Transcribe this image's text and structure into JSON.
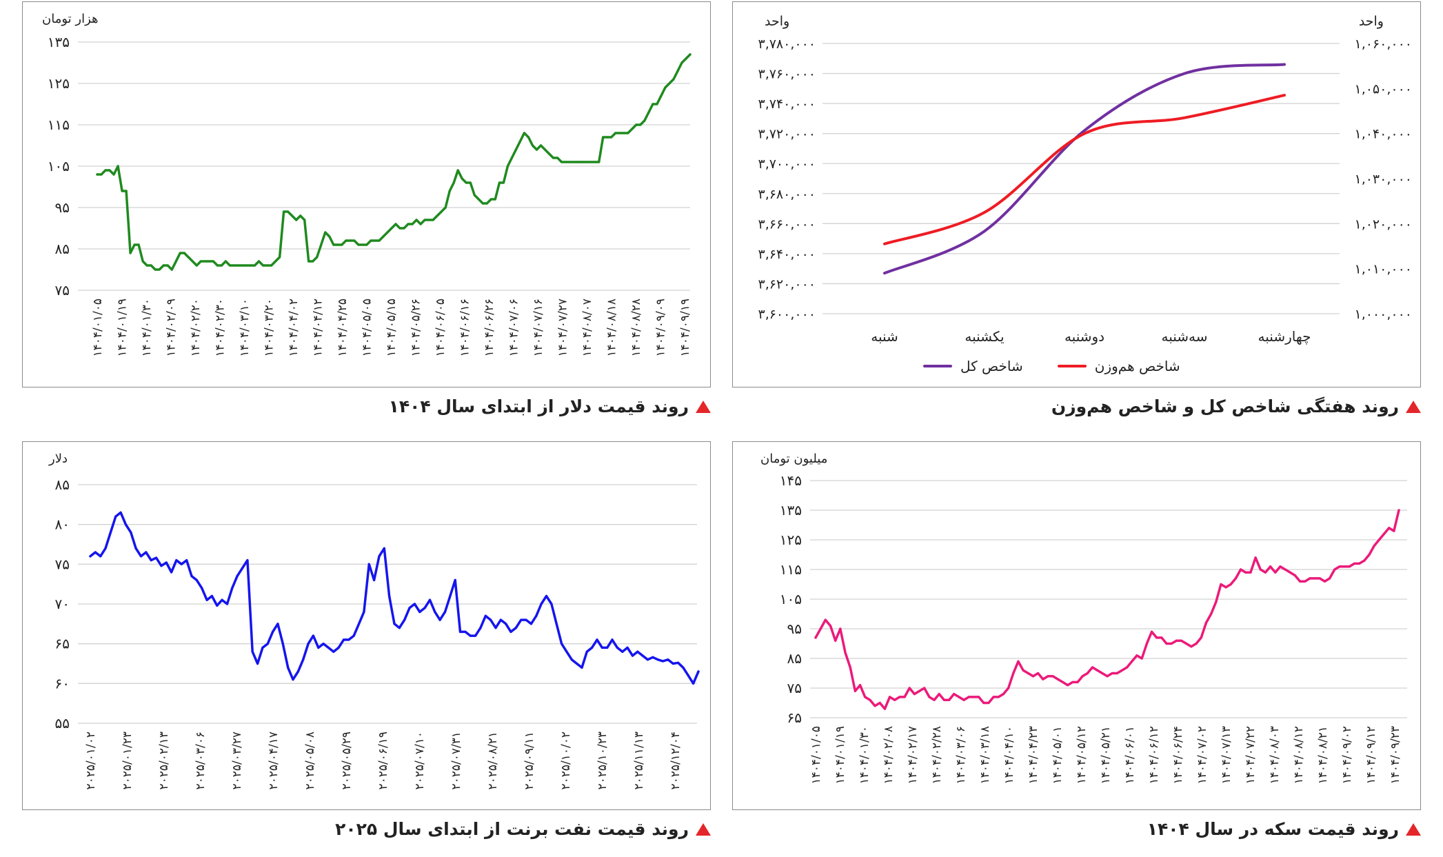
{
  "colors": {
    "dollar": "#1f8a1f",
    "index": "#7030a0",
    "ew": "#ee1c24",
    "coin": "#ec1a7a",
    "oil": "#1515ee",
    "caption_marker": "#e4262a"
  },
  "captions": {
    "dollar": "روند قیمت دلار از ابتدای سال ۱۴۰۴",
    "index": "روند هفتگی شاخص کل و شاخص هم‌وزن",
    "oil": "روند قیمت نفت برنت از ابتدای سال ۲۰۲۵",
    "coin": "روند قیمت سکه در سال ۱۴۰۴"
  },
  "chart_data": [
    {
      "id": "dollar",
      "type": "line",
      "unit_label": "هزار تومان",
      "ylim": [
        75,
        135
      ],
      "yticks": [
        75,
        85,
        95,
        105,
        115,
        125,
        135
      ],
      "ytick_labels": [
        "۷۵",
        "۸۵",
        "۹۵",
        "۱۰۵",
        "۱۱۵",
        "۱۲۵",
        "۱۳۵"
      ],
      "xtick_labels": [
        "۱۴۰۴/۰۱/۰۵",
        "۱۴۰۴/۰۱/۱۹",
        "۱۴۰۴/۰۱/۳۰",
        "۱۴۰۴/۰۲/۰۹",
        "۱۴۰۴/۰۲/۲۰",
        "۱۴۰۴/۰۲/۳۰",
        "۱۴۰۴/۰۳/۱۰",
        "۱۴۰۴/۰۳/۲۰",
        "۱۴۰۴/۰۴/۰۲",
        "۱۴۰۴/۰۴/۱۲",
        "۱۴۰۴/۰۴/۲۵",
        "۱۴۰۴/۰۵/۰۵",
        "۱۴۰۴/۰۵/۱۵",
        "۱۴۰۴/۰۵/۲۶",
        "۱۴۰۴/۰۶/۰۵",
        "۱۴۰۴/۰۶/۱۶",
        "۱۴۰۴/۰۶/۲۶",
        "۱۴۰۴/۰۷/۰۶",
        "۱۴۰۴/۰۷/۱۶",
        "۱۴۰۴/۰۷/۲۷",
        "۱۴۰۴/۰۸/۰۷",
        "۱۴۰۴/۰۸/۱۸",
        "۱۴۰۴/۰۸/۲۸",
        "۱۴۰۴/۰۹/۰۹",
        "۱۴۰۴/۰۹/۱۹"
      ],
      "values": [
        103,
        103,
        104,
        104,
        103,
        105,
        99,
        99,
        84,
        86,
        86,
        82,
        81,
        81,
        80,
        80,
        81,
        81,
        80,
        82,
        84,
        84,
        83,
        82,
        81,
        82,
        82,
        82,
        82,
        81,
        81,
        82,
        81,
        81,
        81,
        81,
        81,
        81,
        81,
        82,
        81,
        81,
        81,
        82,
        83,
        94,
        94,
        93,
        92,
        93,
        92,
        82,
        82,
        83,
        86,
        89,
        88,
        86,
        86,
        86,
        87,
        87,
        87,
        86,
        86,
        86,
        87,
        87,
        87,
        88,
        89,
        90,
        91,
        90,
        90,
        91,
        91,
        92,
        91,
        92,
        92,
        92,
        93,
        94,
        95,
        99,
        101,
        104,
        102,
        101,
        101,
        98,
        97,
        96,
        96,
        97,
        97,
        101,
        101,
        105,
        107,
        109,
        111,
        113,
        112,
        110,
        109,
        110,
        109,
        108,
        107,
        107,
        106,
        106,
        106,
        106,
        106,
        106,
        106,
        106,
        106,
        106,
        112,
        112,
        112,
        113,
        113,
        113,
        113,
        114,
        115,
        115,
        116,
        118,
        120,
        120,
        122,
        124,
        125,
        126,
        128,
        130,
        131,
        132
      ]
    },
    {
      "id": "index",
      "type": "line",
      "unit_label_left": "واحد",
      "unit_label_right": "واحد",
      "categories": [
        "شنبه",
        "یکشنبه",
        "دوشنبه",
        "سه‌شنبه",
        "چهارشنبه"
      ],
      "left_ylim": [
        3600000,
        3780000
      ],
      "left_ytick_labels": [
        "۳,۶۰۰,۰۰۰",
        "۳,۶۲۰,۰۰۰",
        "۳,۶۴۰,۰۰۰",
        "۳,۶۶۰,۰۰۰",
        "۳,۶۸۰,۰۰۰",
        "۳,۷۰۰,۰۰۰",
        "۳,۷۲۰,۰۰۰",
        "۳,۷۴۰,۰۰۰",
        "۳,۷۶۰,۰۰۰",
        "۳,۷۸۰,۰۰۰"
      ],
      "right_ylim": [
        1000000,
        1060000
      ],
      "right_ytick_labels": [
        "۱,۰۰۰,۰۰۰",
        "۱,۰۱۰,۰۰۰",
        "۱,۰۲۰,۰۰۰",
        "۱,۰۳۰,۰۰۰",
        "۱,۰۴۰,۰۰۰",
        "۱,۰۵۰,۰۰۰",
        "۱,۰۶۰,۰۰۰"
      ],
      "series": [
        {
          "name": "شاخص کل",
          "axis": "left",
          "values": [
            3627000,
            3655000,
            3722000,
            3760000,
            3766000
          ]
        },
        {
          "name": "شاخص هم‌وزن",
          "axis": "right",
          "values": [
            1015500,
            1022500,
            1040000,
            1043500,
            1048500
          ]
        }
      ],
      "legend": [
        "شاخص هم‌وزن",
        "شاخص کل"
      ]
    },
    {
      "id": "oil",
      "type": "line",
      "unit_label": "دلار",
      "ylim": [
        55,
        85
      ],
      "yticks": [
        55,
        60,
        65,
        70,
        75,
        80,
        85
      ],
      "ytick_labels": [
        "۵۵",
        "۶۰",
        "۶۵",
        "۷۰",
        "۷۵",
        "۸۰",
        "۸۵"
      ],
      "xtick_labels": [
        "۲۰۲۵/۰۱/۰۲",
        "۲۰۲۵/۰۱/۲۳",
        "۲۰۲۵/۰۲/۱۳",
        "۲۰۲۵/۰۳/۰۶",
        "۲۰۲۵/۰۳/۲۷",
        "۲۰۲۵/۰۴/۱۷",
        "۲۰۲۵/۰۵/۰۸",
        "۲۰۲۵/۰۵/۲۹",
        "۲۰۲۵/۰۶/۱۹",
        "۲۰۲۵/۰۷/۱۰",
        "۲۰۲۵/۰۷/۳۱",
        "۲۰۲۵/۰۸/۲۱",
        "۲۰۲۵/۰۹/۱۱",
        "۲۰۲۵/۱۰/۰۲",
        "۲۰۲۵/۱۰/۲۳",
        "۲۰۲۵/۱۱/۱۳",
        "۲۰۲۵/۱۲/۰۴"
      ],
      "values": [
        76,
        76.5,
        76,
        77,
        79,
        81,
        81.5,
        80,
        79,
        77,
        76,
        76.5,
        75.5,
        75.8,
        74.8,
        75.2,
        74,
        75.5,
        75,
        75.5,
        73.5,
        73,
        72,
        70.5,
        71,
        69.8,
        70.5,
        70,
        72,
        73.5,
        74.5,
        75.5,
        64,
        62.5,
        64.5,
        65,
        66.5,
        67.5,
        65,
        62,
        60.5,
        61.5,
        63,
        65,
        66,
        64.5,
        65,
        64.5,
        64,
        64.5,
        65.5,
        65.5,
        66,
        67.5,
        69,
        75,
        73,
        76,
        77,
        71,
        67.5,
        67,
        68,
        69.5,
        70,
        69,
        69.5,
        70.5,
        69,
        68,
        69,
        71,
        73,
        66.5,
        66.5,
        66,
        66,
        67,
        68.5,
        68,
        67,
        68,
        67.5,
        66.5,
        67,
        68,
        68,
        67.5,
        68.5,
        70,
        71,
        70,
        67.5,
        65,
        64,
        63,
        62.5,
        62,
        64,
        64.5,
        65.5,
        64.5,
        64.5,
        65.5,
        64.5,
        64,
        64.5,
        63.5,
        64,
        63.5,
        63,
        63.3,
        63,
        62.8,
        63,
        62.5,
        62.6,
        62,
        61,
        60,
        61.5
      ]
    },
    {
      "id": "coin",
      "type": "line",
      "unit_label": "میلیون تومان",
      "ylim": [
        65,
        145
      ],
      "yticks": [
        65,
        75,
        85,
        95,
        105,
        115,
        125,
        135,
        145
      ],
      "ytick_labels": [
        "۶۵",
        "۷۵",
        "۸۵",
        "۹۵",
        "۱۰۵",
        "۱۱۵",
        "۱۲۵",
        "۱۳۵",
        "۱۴۵"
      ],
      "xtick_labels": [
        "۱۴۰۴/۰۱/۰۵",
        "۱۴۰۴/۰۱/۱۹",
        "۱۴۰۴/۰۱/۳۰",
        "۱۴۰۴/۰۲/۰۸",
        "۱۴۰۴/۰۲/۱۷",
        "۱۴۰۴/۰۲/۲۸",
        "۱۴۰۴/۰۳/۰۶",
        "۱۴۰۴/۰۳/۱۸",
        "۱۴۰۴/۰۴/۱۰",
        "۱۴۰۴/۰۴/۲۳",
        "۱۴۰۴/۰۵/۰۱",
        "۱۴۰۴/۰۵/۱۲",
        "۱۴۰۴/۰۵/۲۱",
        "۱۴۰۴/۰۶/۰۱",
        "۱۴۰۴/۰۶/۱۲",
        "۱۴۰۴/۰۶/۲۴",
        "۱۴۰۴/۰۷/۰۲",
        "۱۴۰۴/۰۷/۱۳",
        "۱۴۰۴/۰۷/۲۲",
        "۱۴۰۴/۰۸/۰۳",
        "۱۴۰۴/۰۸/۱۲",
        "۱۴۰۴/۰۸/۲۱",
        "۱۴۰۴/۰۹/۰۲",
        "۱۴۰۴/۰۹/۱۲",
        "۱۴۰۴/۰۹/۲۳"
      ],
      "values": [
        92,
        95,
        98,
        96,
        91,
        95,
        87,
        82,
        74,
        76,
        72,
        71,
        69,
        70,
        68,
        72,
        71,
        72,
        72,
        75,
        73,
        74,
        75,
        72,
        71,
        73,
        71,
        71,
        73,
        72,
        71,
        72,
        72,
        72,
        70,
        70,
        72,
        72,
        73,
        75,
        80,
        84,
        81,
        80,
        79,
        80,
        78,
        79,
        79,
        78,
        77,
        76,
        77,
        77,
        79,
        80,
        82,
        81,
        80,
        79,
        80,
        80,
        81,
        82,
        84,
        86,
        85,
        90,
        94,
        92,
        92,
        90,
        90,
        91,
        91,
        90,
        89,
        90,
        92,
        97,
        100,
        104,
        110,
        109,
        110,
        112,
        115,
        114,
        114,
        119,
        115,
        114,
        116,
        114,
        116,
        115,
        114,
        113,
        111,
        111,
        112,
        112,
        112,
        111,
        112,
        115,
        116,
        116,
        116,
        117,
        117,
        118,
        120,
        123,
        125,
        127,
        129,
        128,
        135
      ]
    }
  ]
}
